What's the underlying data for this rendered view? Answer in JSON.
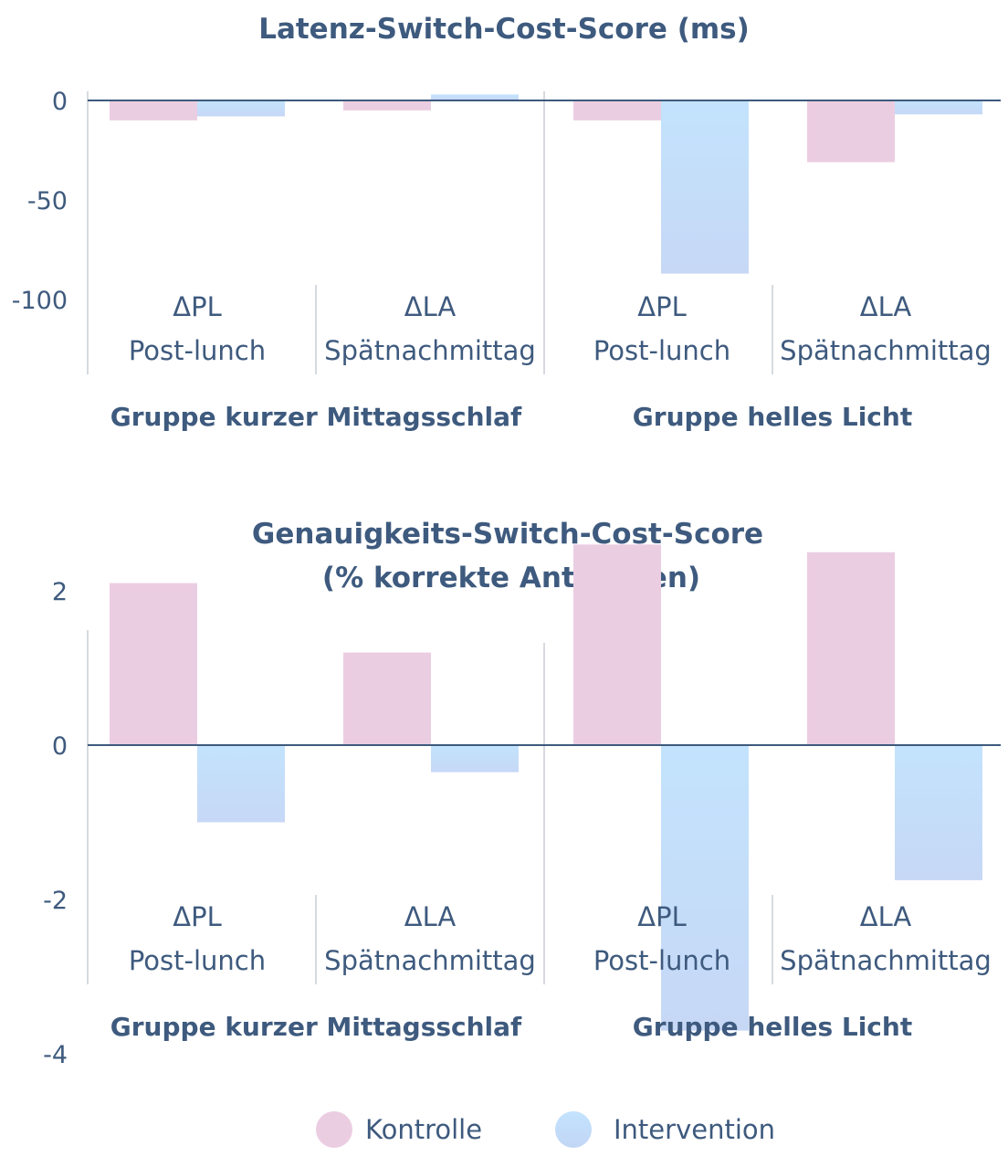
{
  "chart_data": [
    {
      "type": "bar",
      "title": "Latenz-Switch-Cost-Score (ms)",
      "subtitle": "",
      "ylim": [
        -100,
        0
      ],
      "yticks": [
        0,
        -50,
        -100
      ],
      "groups": [
        "Gruppe kurzer Mittagsschlaf",
        "Gruppe helles Licht"
      ],
      "categories": [
        {
          "symbol": "ΔPL",
          "label": "Post-lunch"
        },
        {
          "symbol": "ΔLA",
          "label": "Spätnachmittag"
        },
        {
          "symbol": "ΔPL",
          "label": "Post-lunch"
        },
        {
          "symbol": "ΔLA",
          "label": "Spätnachmittag"
        }
      ],
      "series": [
        {
          "name": "Kontrolle",
          "values": [
            -10,
            -5,
            -10,
            -31
          ]
        },
        {
          "name": "Intervention",
          "values": [
            -8,
            3,
            -87,
            -7
          ]
        }
      ]
    },
    {
      "type": "bar",
      "title": "Genauigkeits-Switch-Cost-Score",
      "subtitle": "(% korrekte Antworten)",
      "ylim": [
        -4,
        2
      ],
      "yticks": [
        2,
        0,
        -2,
        -4
      ],
      "groups": [
        "Gruppe kurzer Mittagsschlaf",
        "Gruppe helles Licht"
      ],
      "categories": [
        {
          "symbol": "ΔPL",
          "label": "Post-lunch"
        },
        {
          "symbol": "ΔLA",
          "label": "Spätnachmittag"
        },
        {
          "symbol": "ΔPL",
          "label": "Post-lunch"
        },
        {
          "symbol": "ΔLA",
          "label": "Spätnachmittag"
        }
      ],
      "series": [
        {
          "name": "Kontrolle",
          "values": [
            2.1,
            1.2,
            2.6,
            2.5
          ]
        },
        {
          "name": "Intervention",
          "values": [
            -1.0,
            -0.35,
            -3.7,
            -1.75
          ]
        }
      ]
    }
  ],
  "legend": {
    "placement": "bottom",
    "items": [
      {
        "name": "Kontrolle",
        "color": "#ebcde2"
      },
      {
        "name": "Intervention",
        "color": "#c3e1fb"
      }
    ]
  },
  "colors": {
    "text": "#3e5a7e",
    "kontrolle": "#ebcde2",
    "intervention_top": "#c3e3fd",
    "intervention_bottom": "#c6d8f6",
    "baseline": "#3e5a7e",
    "divider": "#d6dae0"
  }
}
